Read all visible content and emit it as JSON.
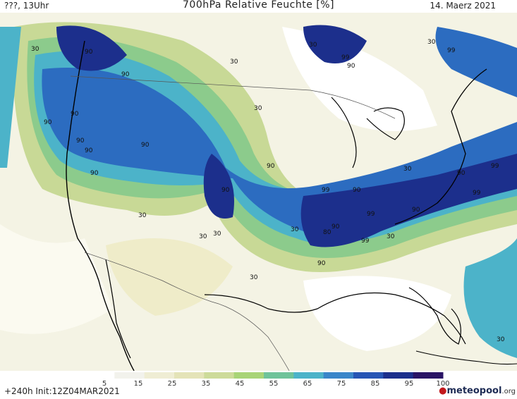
{
  "header": {
    "left_text": "???, 13Uhr",
    "title": "700hPa Relative Feuchte [%]",
    "date": "14. Maerz 2021"
  },
  "footer": {
    "run_info": "+240h  Init:12Z04MAR2021",
    "logo_text": "meteopool",
    "logo_suffix": ".org"
  },
  "colorbar": {
    "ticks": [
      "5",
      "15",
      "25",
      "35",
      "45",
      "55",
      "65",
      "75",
      "85",
      "95",
      "100"
    ],
    "colors": [
      "#ffffff",
      "#f2f2ec",
      "#efedd4",
      "#e4e3b8",
      "#cddb9a",
      "#a8d477",
      "#6fc39a",
      "#4cb3c9",
      "#3a86c9",
      "#2755b4",
      "#1c2f8c",
      "#2a1465"
    ]
  },
  "contour_labels": [
    "30",
    "90",
    "90",
    "90",
    "90",
    "90",
    "90",
    "90",
    "90",
    "90",
    "30",
    "30",
    "30",
    "30",
    "30",
    "99",
    "90",
    "99",
    "90",
    "90",
    "99",
    "90",
    "80",
    "99",
    "90",
    "30",
    "30",
    "99",
    "90",
    "99",
    "99",
    "90",
    "30",
    "30",
    "30",
    "30",
    "30"
  ]
}
